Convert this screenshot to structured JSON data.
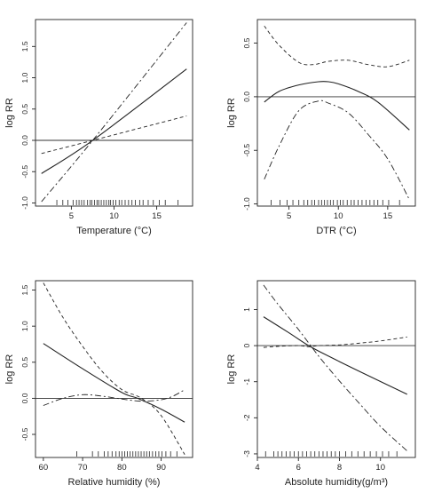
{
  "colors": {
    "ink": "#222222",
    "reference_line": "#333333"
  },
  "chart_data": [
    {
      "type": "line",
      "xlabel": "Temperature (°C)",
      "ylabel": "log RR",
      "xlim": [
        0.8,
        19.2
      ],
      "ylim": [
        -1.05,
        1.93
      ],
      "xticks": [
        5,
        10,
        15
      ],
      "yticks": [
        -1.0,
        -0.5,
        0.0,
        0.5,
        1.0,
        1.5
      ],
      "ytick_labels": [
        "-1.0",
        "-0.5",
        "0.0",
        "0.5",
        "1.0",
        "1.5"
      ],
      "reference_y": 0.0,
      "grid": false,
      "series": [
        {
          "role": "estimate",
          "x": [
            1.5,
            7.5,
            18.5
          ],
          "y": [
            -0.53,
            0.0,
            1.14
          ]
        },
        {
          "role": "upper_ci",
          "x": [
            1.5,
            7.5,
            18.5
          ],
          "y": [
            -0.21,
            0.0,
            0.39
          ]
        },
        {
          "role": "lower_ci",
          "x": [
            1.5,
            7.5,
            18.5
          ],
          "y": [
            -0.98,
            0.0,
            1.88
          ]
        }
      ],
      "rug": [
        3.3,
        4.0,
        4.6,
        5.2,
        5.6,
        5.9,
        6.2,
        6.5,
        6.9,
        7.2,
        7.4,
        7.7,
        8.0,
        8.2,
        8.5,
        8.8,
        9.1,
        9.4,
        9.6,
        9.9,
        10.2,
        10.6,
        10.9,
        11.3,
        11.7,
        12.1,
        12.5,
        13.0,
        13.4,
        14.0,
        14.6,
        15.3,
        16.0,
        17.5
      ]
    },
    {
      "type": "line",
      "xlabel": "DTR (°C)",
      "ylabel": "log RR",
      "xlim": [
        1.8,
        17.8
      ],
      "ylim": [
        -1.02,
        0.72
      ],
      "xticks": [
        5,
        10,
        15
      ],
      "yticks": [
        -1.0,
        -0.5,
        0.0,
        0.5
      ],
      "ytick_labels": [
        "-1.0",
        "-0.5",
        "0.0",
        "0.5"
      ],
      "reference_y": 0.0,
      "grid": false,
      "series": [
        {
          "role": "estimate",
          "x": [
            2.5,
            4,
            6,
            8,
            9,
            10,
            12,
            14,
            17.2
          ],
          "y": [
            -0.05,
            0.05,
            0.11,
            0.14,
            0.14,
            0.12,
            0.05,
            -0.05,
            -0.31
          ]
        },
        {
          "role": "upper_ci",
          "x": [
            2.5,
            4,
            6,
            7.5,
            9,
            11,
            13,
            15,
            17.2
          ],
          "y": [
            0.66,
            0.48,
            0.32,
            0.3,
            0.33,
            0.34,
            0.3,
            0.28,
            0.34
          ]
        },
        {
          "role": "lower_ci",
          "x": [
            2.5,
            4,
            6,
            8,
            9,
            11,
            13,
            15,
            17.2
          ],
          "y": [
            -0.77,
            -0.46,
            -0.13,
            -0.04,
            -0.06,
            -0.15,
            -0.35,
            -0.58,
            -0.96
          ]
        }
      ],
      "rug": [
        3.2,
        4.1,
        4.8,
        5.4,
        6.0,
        6.5,
        6.9,
        7.3,
        7.6,
        8.0,
        8.3,
        8.6,
        8.9,
        9.2,
        9.5,
        9.9,
        10.2,
        10.5,
        10.9,
        11.3,
        11.6,
        12.0,
        12.4,
        12.8,
        13.2,
        13.6,
        14.0,
        14.5,
        15.1,
        16.2
      ]
    },
    {
      "type": "line",
      "xlabel": "Relative humidity (%)",
      "ylabel": "log RR",
      "xlim": [
        58,
        98
      ],
      "ylim": [
        -0.82,
        1.63
      ],
      "xticks": [
        60,
        70,
        80,
        90
      ],
      "yticks": [
        -0.5,
        0.0,
        0.5,
        1.0,
        1.5
      ],
      "ytick_labels": [
        "-0.5",
        "0.0",
        "0.5",
        "1.0",
        "1.5"
      ],
      "reference_y": 0.0,
      "grid": false,
      "series": [
        {
          "role": "estimate",
          "x": [
            60,
            70,
            80,
            84,
            90,
            96
          ],
          "y": [
            0.76,
            0.41,
            0.08,
            0.0,
            -0.15,
            -0.33
          ]
        },
        {
          "role": "upper_ci",
          "x": [
            60,
            65,
            70,
            75,
            80,
            85,
            90,
            96
          ],
          "y": [
            1.6,
            1.12,
            0.72,
            0.37,
            0.12,
            0.0,
            -0.24,
            -0.78
          ]
        },
        {
          "role": "lower_ci",
          "x": [
            60,
            65,
            70,
            75,
            80,
            85,
            90,
            93,
            96
          ],
          "y": [
            -0.1,
            0.0,
            0.05,
            0.03,
            -0.01,
            -0.04,
            -0.02,
            0.03,
            0.12
          ]
        }
      ],
      "rug": [
        68.5,
        72.5,
        74.0,
        75.5,
        76.5,
        77.5,
        78.5,
        79.3,
        80.0,
        80.7,
        81.4,
        82.1,
        82.8,
        83.5,
        84.2,
        84.9,
        85.6,
        86.3,
        87.0,
        87.8,
        88.6,
        89.4,
        90.2,
        91.2,
        92.4,
        94.0
      ]
    },
    {
      "type": "line",
      "xlabel": "Absolute humidity(g/m³)",
      "ylabel": "log RR",
      "xlim": [
        4.0,
        11.7
      ],
      "ylim": [
        -3.1,
        1.8
      ],
      "xticks": [
        4,
        6,
        8,
        10
      ],
      "yticks": [
        -3,
        -2,
        -1,
        0,
        1
      ],
      "ytick_labels": [
        "-3",
        "-2",
        "-1",
        "0",
        "1"
      ],
      "reference_y": 0.0,
      "grid": false,
      "series": [
        {
          "role": "estimate",
          "x": [
            4.3,
            5.5,
            6.5,
            7.5,
            9,
            11.3
          ],
          "y": [
            0.8,
            0.37,
            0.0,
            -0.3,
            -0.72,
            -1.35
          ]
        },
        {
          "role": "upper_ci",
          "x": [
            4.3,
            5,
            6,
            6.5,
            7,
            8,
            9,
            10,
            11.3
          ],
          "y": [
            -0.05,
            -0.02,
            0.0,
            -0.03,
            0.0,
            0.02,
            0.07,
            0.13,
            0.24
          ]
        },
        {
          "role": "lower_ci",
          "x": [
            4.3,
            5,
            6,
            7,
            8,
            9,
            10,
            11.3
          ],
          "y": [
            1.68,
            1.15,
            0.45,
            -0.3,
            -0.98,
            -1.62,
            -2.24,
            -2.92
          ]
        }
      ],
      "rug": [
        4.4,
        4.8,
        5.0,
        5.2,
        5.4,
        5.6,
        5.8,
        6.0,
        6.2,
        6.4,
        6.6,
        6.8,
        7.0,
        7.2,
        7.4,
        7.6,
        7.8,
        8.0,
        8.3,
        8.6,
        8.9,
        9.2,
        9.5,
        9.8,
        10.1,
        10.4,
        10.8
      ]
    }
  ]
}
